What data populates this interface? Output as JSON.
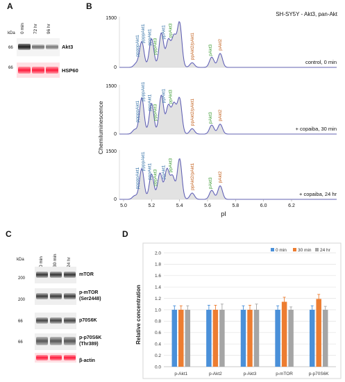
{
  "panels": {
    "A": "A",
    "B": "B",
    "C": "C",
    "D": "D"
  },
  "panelA": {
    "kda": "kDa",
    "samples": [
      "0 min",
      "72 hr",
      "96 hr"
    ],
    "markers": [
      "66",
      "66"
    ],
    "rows": [
      {
        "label": "Akt3"
      },
      {
        "label": "HSP60"
      }
    ],
    "colors": {
      "band": "#333333",
      "hsp": "#ff2040"
    }
  },
  "panelB": {
    "title": "SH-SY5Y - Akt3, pan-Akt",
    "ylabel": "Chemiluminescence",
    "xlabel": "pI",
    "xticks": [
      "5.0",
      "5.2",
      "5.4",
      "5.6",
      "5.8",
      "6.0",
      "6.2"
    ],
    "yticks": [
      "1500",
      "0"
    ],
    "conditions": [
      "control, 0 min",
      "+ copaiba, 30 min",
      "+ copaiba, 24 hr"
    ],
    "colors": {
      "trace": "#6a6ad0",
      "fill": "#d8d8d8",
      "akt1": "#2e6da4",
      "akt3": "#3a9a30",
      "akt2": "#c05a14"
    },
    "peak_labels": [
      [
        "pppppAkt1",
        "ppppAkt1",
        "pppAkt1",
        "pppAkt3",
        "ppAkt1",
        "ppAkt3",
        "ppAkt2/pAkt1",
        "pAkt3",
        "pAkt2"
      ],
      [
        "pppppAkt1",
        "ppppAkt1",
        "pppAkt1",
        "pppAkt3",
        "ppAkt1",
        "ppAkt3",
        "ppAkt2/pAkt1",
        "pAkt3",
        "pAkt2"
      ],
      [
        "pppppAkt1",
        "ppppAkt1",
        "pppAkt1",
        "pppAkt3",
        "ppAkt1",
        "ppAkt3",
        "ppAkt2/pAkt1",
        "pAkt3",
        "pAkt2"
      ]
    ]
  },
  "panelC": {
    "kda": "kDa",
    "samples": [
      "0 min",
      "30 min",
      "24 hr"
    ],
    "rows": [
      {
        "label": "mTOR",
        "marker": "200"
      },
      {
        "label": "p-mTOR",
        "label2": "(Ser2448)",
        "marker": "200"
      },
      {
        "label": "p70S6K",
        "marker": "66"
      },
      {
        "label": "p-p70S6K",
        "label2": "(Thr389)",
        "marker": "66"
      },
      {
        "label": "β-actin",
        "marker": ""
      }
    ],
    "colors": {
      "actin": "#ff2040"
    }
  },
  "chart_data": {
    "type": "bar",
    "title": "",
    "xlabel": "",
    "ylabel": "Relative  concentration",
    "ylim": [
      0,
      2
    ],
    "yticks": [
      "0.0",
      "0.2",
      "0.4",
      "0.6",
      "0.8",
      "1.0",
      "1.2",
      "1.4",
      "1.6",
      "1.8",
      "2.0"
    ],
    "grid": true,
    "legend_position": "top-right",
    "categories": [
      "p-Akt1",
      "p-Akt2",
      "p-Akt3",
      "p-mTOR",
      "p-p70S6K"
    ],
    "series": [
      {
        "name": "0  min",
        "color": "#4a90d9",
        "values": [
          1.0,
          1.0,
          1.0,
          1.0,
          1.0
        ],
        "errors": [
          0.07,
          0.08,
          0.07,
          0.07,
          0.07
        ]
      },
      {
        "name": "30 min",
        "color": "#ed7d31",
        "values": [
          1.0,
          1.0,
          1.0,
          1.14,
          1.19
        ],
        "errors": [
          0.07,
          0.08,
          0.08,
          0.08,
          0.08
        ]
      },
      {
        "name": "24 hr",
        "color": "#a5a5a5",
        "values": [
          1.0,
          1.0,
          1.0,
          1.0,
          1.0
        ],
        "errors": [
          0.07,
          0.1,
          0.1,
          0.05,
          0.06
        ]
      }
    ]
  }
}
